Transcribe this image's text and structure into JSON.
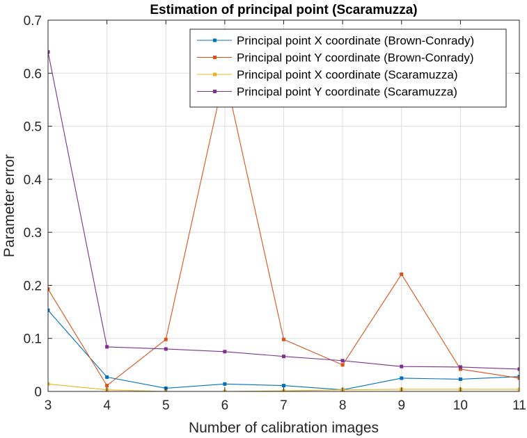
{
  "chart_data": {
    "type": "line",
    "title": "Estimation of principal point (Scaramuzza)",
    "xlabel": "Number of calibration images",
    "ylabel": "Parameter error",
    "xlim": [
      3,
      11
    ],
    "ylim": [
      0,
      0.7
    ],
    "x_ticks": [
      3,
      4,
      5,
      6,
      7,
      8,
      9,
      10,
      11
    ],
    "x_tick_labels": [
      "3",
      "4",
      "5",
      "6",
      "7",
      "8",
      "9",
      "10",
      "11"
    ],
    "y_ticks": [
      0,
      0.1,
      0.2,
      0.3,
      0.4,
      0.5,
      0.6,
      0.7
    ],
    "y_tick_labels": [
      "0",
      "0.1",
      "0.2",
      "0.3",
      "0.4",
      "0.5",
      "0.6",
      "0.7"
    ],
    "grid": true,
    "legend_position": "top-right",
    "x": [
      3,
      4,
      5,
      6,
      7,
      8,
      9,
      10,
      11
    ],
    "series": [
      {
        "name": "Principal point X coordinate (Brown-Conrady)",
        "color": "#0072BD",
        "values": [
          0.153,
          0.027,
          0.006,
          0.014,
          0.011,
          0.003,
          0.025,
          0.023,
          0.028
        ]
      },
      {
        "name": "Principal point Y coordinate (Brown-Conrady)",
        "color": "#D95319",
        "values": [
          0.193,
          0.011,
          0.098,
          0.6,
          0.098,
          0.05,
          0.221,
          0.042,
          0.025
        ]
      },
      {
        "name": "Principal point X coordinate (Scaramuzza)",
        "color": "#EDB120",
        "values": [
          0.014,
          0.003,
          0.0,
          0.0,
          0.001,
          0.003,
          0.004,
          0.004,
          0.004
        ]
      },
      {
        "name": "Principal point Y coordinate (Scaramuzza)",
        "color": "#7E2F8E",
        "values": [
          0.64,
          0.084,
          0.08,
          0.075,
          0.066,
          0.058,
          0.047,
          0.046,
          0.042
        ]
      }
    ]
  }
}
